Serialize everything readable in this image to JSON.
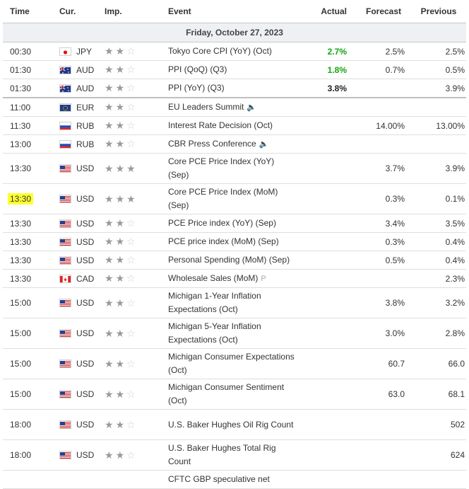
{
  "columns": {
    "time": "Time",
    "currency": "Cur.",
    "importance": "Imp.",
    "event": "Event",
    "actual": "Actual",
    "forecast": "Forecast",
    "previous": "Previous"
  },
  "date_label": "Friday, October 27, 2023",
  "rows": [
    {
      "time": "00:30",
      "cur": "JPY",
      "flag": "jp",
      "stars": 2,
      "event": "Tokyo Core CPI (YoY) (Oct)",
      "actual": "2.7%",
      "actual_color": "#12a612",
      "forecast": "2.5%",
      "previous": "2.5%"
    },
    {
      "time": "01:30",
      "cur": "AUD",
      "flag": "au",
      "stars": 2,
      "event": "PPI (QoQ) (Q3)",
      "actual": "1.8%",
      "actual_color": "#12a612",
      "forecast": "0.7%",
      "previous": "0.5%"
    },
    {
      "time": "01:30",
      "cur": "AUD",
      "flag": "au",
      "stars": 2,
      "event": "PPI (YoY) (Q3)",
      "actual": "3.8%",
      "actual_color": "#222222",
      "forecast": "",
      "previous": "3.9%"
    },
    {
      "time": "11:00",
      "cur": "EUR",
      "flag": "eu",
      "stars": 2,
      "event": "EU Leaders Summit",
      "icon": "speaker-icon",
      "actual": "",
      "forecast": "",
      "previous": ""
    },
    {
      "time": "11:30",
      "cur": "RUB",
      "flag": "ru",
      "stars": 2,
      "event": "Interest Rate Decision (Oct)",
      "actual": "",
      "forecast": "14.00%",
      "previous": "13.00%"
    },
    {
      "time": "13:00",
      "cur": "RUB",
      "flag": "ru",
      "stars": 2,
      "event": "CBR Press Conference",
      "icon": "speaker-icon",
      "actual": "",
      "forecast": "",
      "previous": ""
    },
    {
      "time": "13:30",
      "cur": "USD",
      "flag": "us",
      "stars": 3,
      "event": "Core PCE Price Index (YoY) (Sep)",
      "actual": "",
      "forecast": "3.7%",
      "previous": "3.9%"
    },
    {
      "time": "13:30",
      "cur": "USD",
      "flag": "us",
      "stars": 3,
      "event": "Core PCE Price Index (MoM) (Sep)",
      "actual": "",
      "forecast": "0.3%",
      "previous": "0.1%",
      "highlight": true
    },
    {
      "time": "13:30",
      "cur": "USD",
      "flag": "us",
      "stars": 2,
      "event": "PCE Price index (YoY) (Sep)",
      "actual": "",
      "forecast": "3.4%",
      "previous": "3.5%"
    },
    {
      "time": "13:30",
      "cur": "USD",
      "flag": "us",
      "stars": 2,
      "event": "PCE price index (MoM) (Sep)",
      "actual": "",
      "forecast": "0.3%",
      "previous": "0.4%"
    },
    {
      "time": "13:30",
      "cur": "USD",
      "flag": "us",
      "stars": 2,
      "event": "Personal Spending (MoM) (Sep)",
      "actual": "",
      "forecast": "0.5%",
      "previous": "0.4%"
    },
    {
      "time": "13:30",
      "cur": "CAD",
      "flag": "ca",
      "stars": 2,
      "event": "Wholesale Sales (MoM)",
      "icon": "preliminary-icon",
      "actual": "",
      "forecast": "",
      "previous": "2.3%"
    },
    {
      "time": "15:00",
      "cur": "USD",
      "flag": "us",
      "stars": 2,
      "event": "Michigan 1-Year Inflation Expectations (Oct)",
      "actual": "",
      "forecast": "3.8%",
      "previous": "3.2%"
    },
    {
      "time": "15:00",
      "cur": "USD",
      "flag": "us",
      "stars": 2,
      "event": "Michigan 5-Year Inflation Expectations (Oct)",
      "actual": "",
      "forecast": "3.0%",
      "previous": "2.8%"
    },
    {
      "time": "15:00",
      "cur": "USD",
      "flag": "us",
      "stars": 2,
      "event": "Michigan Consumer Expectations (Oct)",
      "actual": "",
      "forecast": "60.7",
      "previous": "66.0"
    },
    {
      "time": "15:00",
      "cur": "USD",
      "flag": "us",
      "stars": 2,
      "event": "Michigan Consumer Sentiment (Oct)",
      "actual": "",
      "forecast": "63.0",
      "previous": "68.1"
    },
    {
      "time": "18:00",
      "cur": "USD",
      "flag": "us",
      "stars": 2,
      "event": "U.S. Baker Hughes Oil Rig Count",
      "actual": "",
      "forecast": "",
      "previous": "502"
    },
    {
      "time": "18:00",
      "cur": "USD",
      "flag": "us",
      "stars": 2,
      "event": "U.S. Baker Hughes Total Rig Count",
      "actual": "",
      "forecast": "",
      "previous": "624"
    }
  ],
  "truncated_next_event": "CFTC GBP speculative net",
  "icons": {
    "speaker": "🔈",
    "preliminary": "P"
  },
  "colors": {
    "highlight": "#ffff33",
    "positive": "#12a612",
    "date_bar": "#eef0f3"
  }
}
